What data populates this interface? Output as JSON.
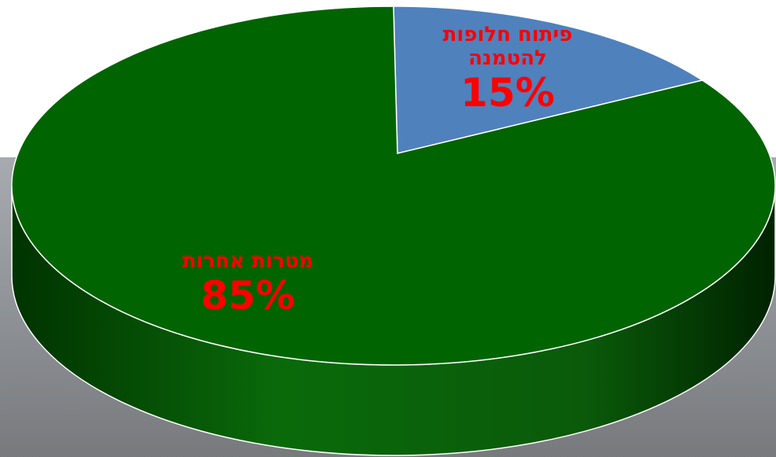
{
  "chart_data": {
    "type": "pie",
    "categories": [
      "פיתוח חלופות להטמנה",
      "מטרות אחרות"
    ],
    "values": [
      15,
      85
    ],
    "value_labels": [
      "15%",
      "85%"
    ],
    "colors": [
      "#4f81bd",
      "#006400"
    ]
  }
}
